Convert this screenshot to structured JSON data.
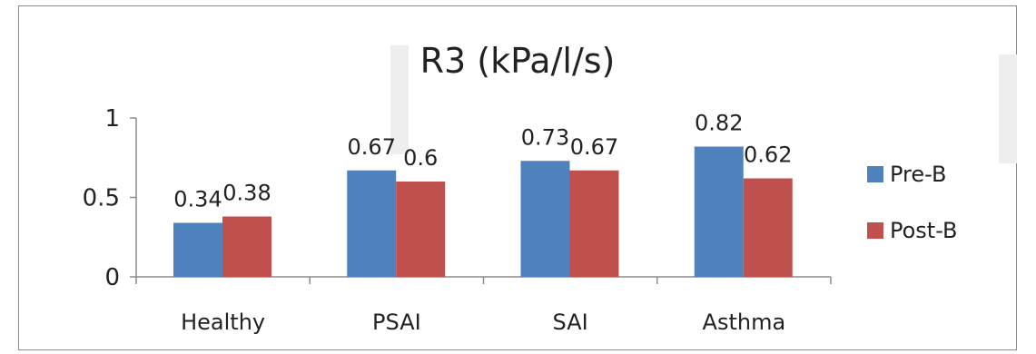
{
  "chart_data": {
    "type": "bar",
    "title": "R3 (kPa/l/s)",
    "categories": [
      "Healthy",
      "PSAI",
      "SAI",
      "Asthma"
    ],
    "series": [
      {
        "name": "Pre-B",
        "values": [
          0.34,
          0.67,
          0.73,
          0.82
        ],
        "labels": [
          "0.34",
          "0.67",
          "0.73",
          "0.82"
        ],
        "color": "#4f81bd"
      },
      {
        "name": "Post-B",
        "values": [
          0.38,
          0.6,
          0.67,
          0.62
        ],
        "labels": [
          "0.38",
          "0.6",
          "0.67",
          "0.62"
        ],
        "color": "#c0504d"
      }
    ],
    "ylim": [
      0,
      1
    ],
    "yticks": [
      0,
      0.5,
      1
    ],
    "ytick_labels": [
      "0",
      "0.5",
      "1"
    ],
    "grid": false,
    "legend_position": "right"
  }
}
